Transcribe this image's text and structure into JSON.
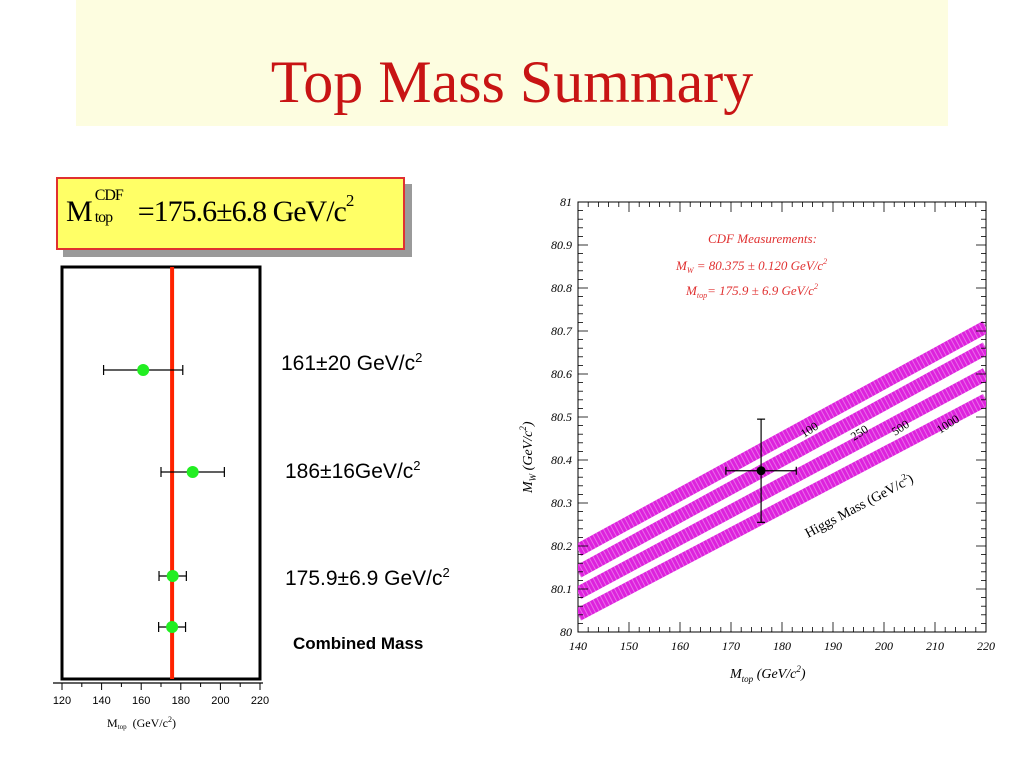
{
  "slide": {
    "title": "Top Mass Summary"
  },
  "formula": {
    "prefix": "M",
    "sup": "CDF",
    "sub": "top",
    "expr": "=175.6±6.8 GeV/c",
    "exp": "2"
  },
  "left_plot": {
    "measurements": [
      {
        "label": "161±20 GeV/c",
        "sup": "2"
      },
      {
        "label": "186±16GeV/c",
        "sup": "2"
      },
      {
        "label": "175.9±6.9 GeV/c",
        "sup": "2"
      }
    ],
    "combined_label": "Combined Mass",
    "axis_label": "M",
    "axis_label_sub": "top",
    "axis_unit": "(GeV/c",
    "axis_unit_sup": "2",
    "axis_unit_close": ")",
    "colors": {
      "line": "#ff2200",
      "point": "#22ee22"
    }
  },
  "right_plot": {
    "legend_title": "CDF Measurements:",
    "legend_mw": "M",
    "legend_mw_sub": "W",
    "legend_mw_val": " = 80.375 ± 0.120 GeV/c",
    "legend_mw_sup": "2",
    "legend_mt": "M",
    "legend_mt_sub": "top",
    "legend_mt_val": "= 175.9 ±  6.9 GeV/c",
    "legend_mt_sup": "2",
    "band_labels": [
      "100",
      "250",
      "500",
      "1000"
    ],
    "higgs_label": "Higgs Mass (GeV/c",
    "higgs_label_sup": "2",
    "higgs_label_close": ")",
    "xlabel": "M",
    "xlabel_sub": "top",
    "xlabel_unit": "  (GeV/c",
    "xlabel_unit_sup": "2",
    "xlabel_unit_close": ")",
    "ylabel": "M",
    "ylabel_sub": "W",
    "ylabel_unit": "  (GeV/c",
    "ylabel_unit_sup": "2",
    "ylabel_unit_close": ")",
    "colors": {
      "band": "#dd22dd",
      "legend_text": "#e03030"
    }
  },
  "chart_data": [
    {
      "type": "scatter",
      "orientation": "horizontal-errorbars",
      "xlim": [
        120,
        220
      ],
      "xticks": [
        "120",
        "140",
        "160",
        "180",
        "200",
        "220"
      ],
      "reference_line": 175.6,
      "points": [
        {
          "value": 161,
          "err_low": 20,
          "err_high": 20
        },
        {
          "value": 186,
          "err_low": 16,
          "err_high": 16
        },
        {
          "value": 175.9,
          "err_low": 6.9,
          "err_high": 6.9
        },
        {
          "value": 175.6,
          "err_low": 6.8,
          "err_high": 6.8
        }
      ]
    },
    {
      "type": "line",
      "xlim": [
        140,
        220
      ],
      "ylim": [
        80,
        81
      ],
      "xticks": [
        "140",
        "150",
        "160",
        "170",
        "180",
        "190",
        "200",
        "210",
        "220"
      ],
      "yticks": [
        "80",
        "80.1",
        "80.2",
        "80.3",
        "80.4",
        "80.5",
        "80.6",
        "80.7",
        "80.8",
        "80.9",
        "81"
      ],
      "series": [
        {
          "name": "100",
          "x": [
            140,
            220
          ],
          "y": [
            80.19,
            80.71
          ]
        },
        {
          "name": "250",
          "x": [
            140,
            220
          ],
          "y": [
            80.14,
            80.66
          ]
        },
        {
          "name": "500",
          "x": [
            140,
            220
          ],
          "y": [
            80.09,
            80.6
          ]
        },
        {
          "name": "1000",
          "x": [
            140,
            220
          ],
          "y": [
            80.04,
            80.54
          ]
        }
      ],
      "measurement": {
        "x": 175.9,
        "x_err": 6.9,
        "y": 80.375,
        "y_err": 0.12
      }
    }
  ]
}
